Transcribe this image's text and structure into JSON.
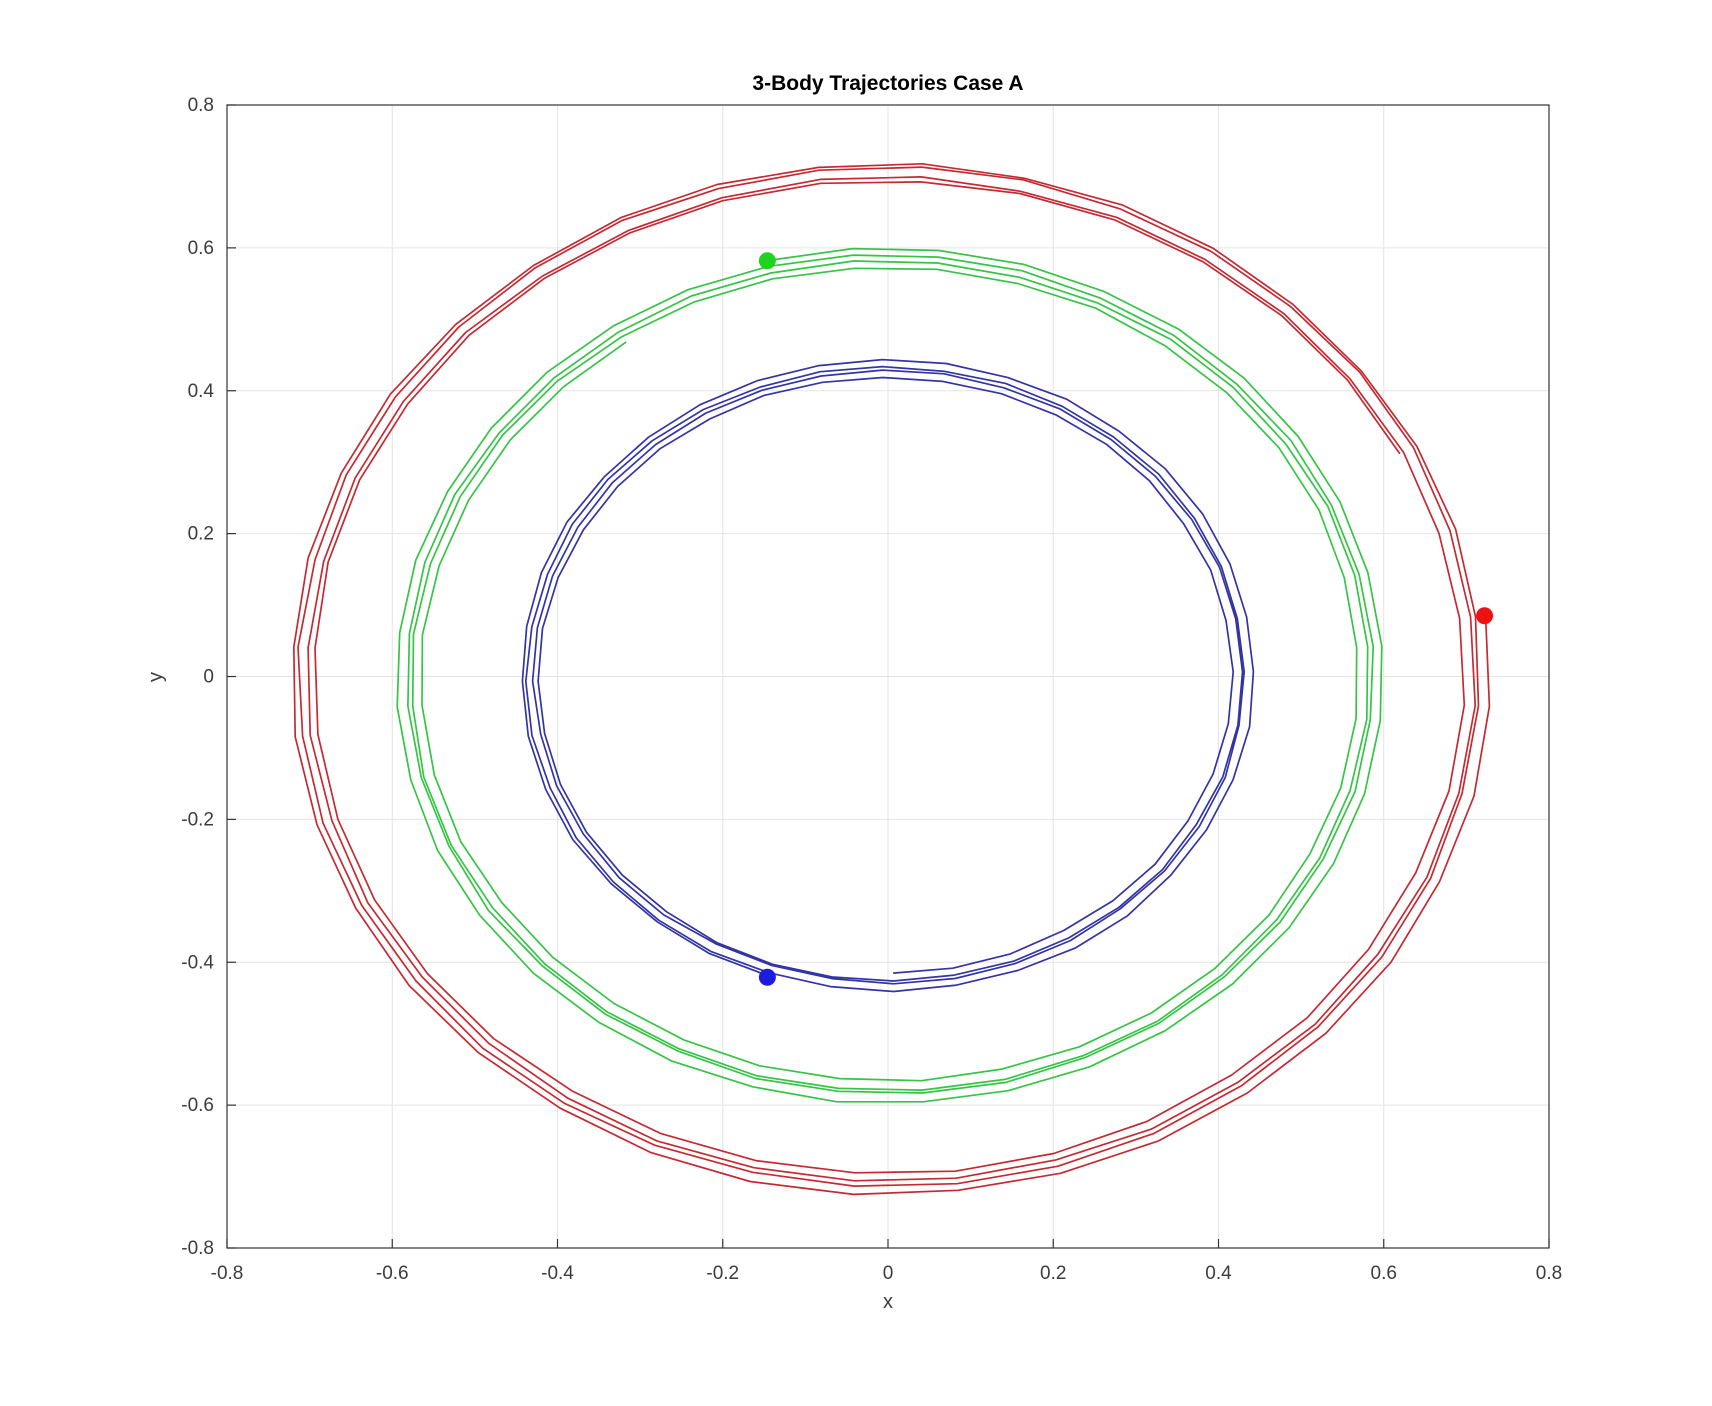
{
  "figure": {
    "background": "#ffffff"
  },
  "chart_data": {
    "type": "line",
    "title": "3-Body Trajectories Case A",
    "xlabel": "x",
    "ylabel": "y",
    "xlim": [
      -0.8,
      0.8
    ],
    "ylim": [
      -0.8,
      0.8
    ],
    "grid": true,
    "legend": false,
    "xticks": {
      "values": [
        -0.8,
        -0.6,
        -0.4,
        -0.2,
        0,
        0.2,
        0.4,
        0.6,
        0.8
      ],
      "labels": [
        "-0.8",
        "-0.6",
        "-0.4",
        "-0.2",
        "0",
        "0.2",
        "0.4",
        "0.6",
        "0.8"
      ]
    },
    "yticks": {
      "values": [
        -0.8,
        -0.6,
        -0.4,
        -0.2,
        0,
        0.2,
        0.4,
        0.6,
        0.8
      ],
      "labels": [
        "-0.8",
        "-0.6",
        "-0.4",
        "-0.2",
        "0",
        "0.2",
        "0.4",
        "0.6",
        "0.8"
      ]
    },
    "colors": {
      "grid": "#e4e4e4",
      "axis_box": "#333333",
      "tick_text": "#3c3c3c",
      "title_text": "#000000"
    },
    "bodies": [
      {
        "name": "body-1-red",
        "line_color": "#c52a33",
        "marker_color": "#ee1111",
        "marker": {
          "x": 0.722,
          "y": 0.085
        },
        "r_outer": 0.727,
        "r_inner": 0.691,
        "loops": 3.94,
        "n_segments": 142,
        "deg_per_step": 10,
        "wobble_amp": 0.0025,
        "wobble_freq": 0.5,
        "wobble_phase": 1.2,
        "jitter": 0.0016,
        "seed": 11
      },
      {
        "name": "body-2-green",
        "line_color": "#35c446",
        "marker_color": "#1fd41f",
        "marker": {
          "x": -0.146,
          "y": 0.582
        },
        "r_outer": 0.6,
        "r_inner": 0.566,
        "loops": 3.94,
        "n_segments": 142,
        "deg_per_step": 10,
        "wobble_amp": 0.0025,
        "wobble_freq": 0.5,
        "wobble_phase": 2.4,
        "jitter": 0.0014,
        "seed": 22
      },
      {
        "name": "body-3-blue",
        "line_color": "#3434a4",
        "marker_color": "#1c1ce0",
        "marker": {
          "x": -0.146,
          "y": -0.421
        },
        "r_outer": 0.4456,
        "r_inner": 0.417,
        "loops": 3.94,
        "n_segments": 142,
        "deg_per_step": 10,
        "wobble_amp": 0.0022,
        "wobble_freq": 0.5,
        "wobble_phase": 5.0,
        "jitter": 0.0012,
        "seed": 33
      }
    ]
  }
}
